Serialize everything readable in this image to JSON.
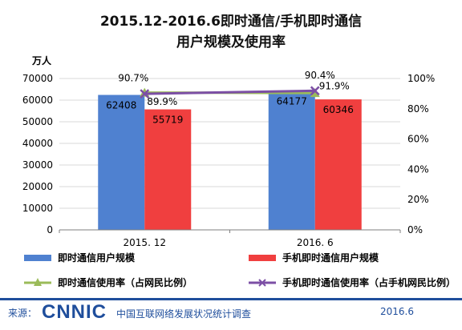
{
  "title_line1": "2015.12-2016.6即时通信/手机即时通信",
  "title_line2": "用户规模及使用率",
  "left_unit": "万人",
  "colors": {
    "bar1": "#4f81d0",
    "bar2": "#f03f3f",
    "line1": "#9bbb59",
    "line2": "#7c4fa5",
    "axis_text": "#000000",
    "footer": "#1f4e9c"
  },
  "chart_data": {
    "type": "bar",
    "categories": [
      "2015. 12",
      "2016. 6"
    ],
    "left_axis": {
      "ylim": [
        0,
        70000
      ],
      "ticks": [
        "0",
        "10000",
        "20000",
        "30000",
        "40000",
        "50000",
        "60000",
        "70000"
      ]
    },
    "right_axis": {
      "ylim": [
        0,
        100
      ],
      "ticks": [
        "0%",
        "20%",
        "40%",
        "60%",
        "80%",
        "100%"
      ]
    },
    "series": [
      {
        "name": "即时通信用户规模",
        "kind": "bar",
        "axis": "left",
        "values": [
          62408,
          64177
        ],
        "labels": [
          "62408",
          "64177"
        ]
      },
      {
        "name": "手机即时通信用户规模",
        "kind": "bar",
        "axis": "left",
        "values": [
          55719,
          60346
        ],
        "labels": [
          "55719",
          "60346"
        ]
      },
      {
        "name": "即时通信使用率（占网民比例）",
        "kind": "line",
        "axis": "right",
        "values": [
          90.7,
          90.4
        ],
        "labels": [
          "90.7%",
          "90.4%"
        ]
      },
      {
        "name": "手机即时通信使用率（占手机网民比例）",
        "kind": "line",
        "axis": "right",
        "values": [
          89.9,
          91.9
        ],
        "labels": [
          "89.9%",
          "91.9%"
        ]
      }
    ]
  },
  "footer": {
    "source_label": "来源：",
    "logo": "CNNIC",
    "center_text": "中国互联网络发展状况统计调查",
    "date": "2016.6"
  }
}
